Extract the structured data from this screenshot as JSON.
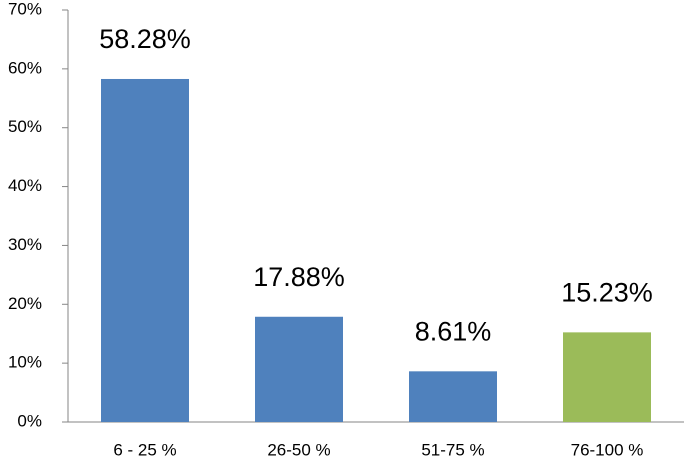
{
  "chart_data": {
    "type": "bar",
    "categories": [
      "6 - 25 %",
      "26-50 %",
      "51-75 %",
      "76-100 %"
    ],
    "values": [
      58.28,
      17.88,
      8.61,
      15.23
    ],
    "value_labels": [
      "58.28%",
      "17.88%",
      "8.61%",
      "15.23%"
    ],
    "colors": [
      "#4f81bd",
      "#4f81bd",
      "#4f81bd",
      "#9bbb59"
    ],
    "ylim": [
      0,
      70
    ],
    "yticks": [
      {
        "value": 0,
        "label": "0%"
      },
      {
        "value": 10,
        "label": "10%"
      },
      {
        "value": 20,
        "label": "20%"
      },
      {
        "value": 30,
        "label": "30%"
      },
      {
        "value": 40,
        "label": "40%"
      },
      {
        "value": 50,
        "label": "50%"
      },
      {
        "value": 60,
        "label": "60%"
      },
      {
        "value": 70,
        "label": "70%"
      }
    ],
    "grid": false
  }
}
